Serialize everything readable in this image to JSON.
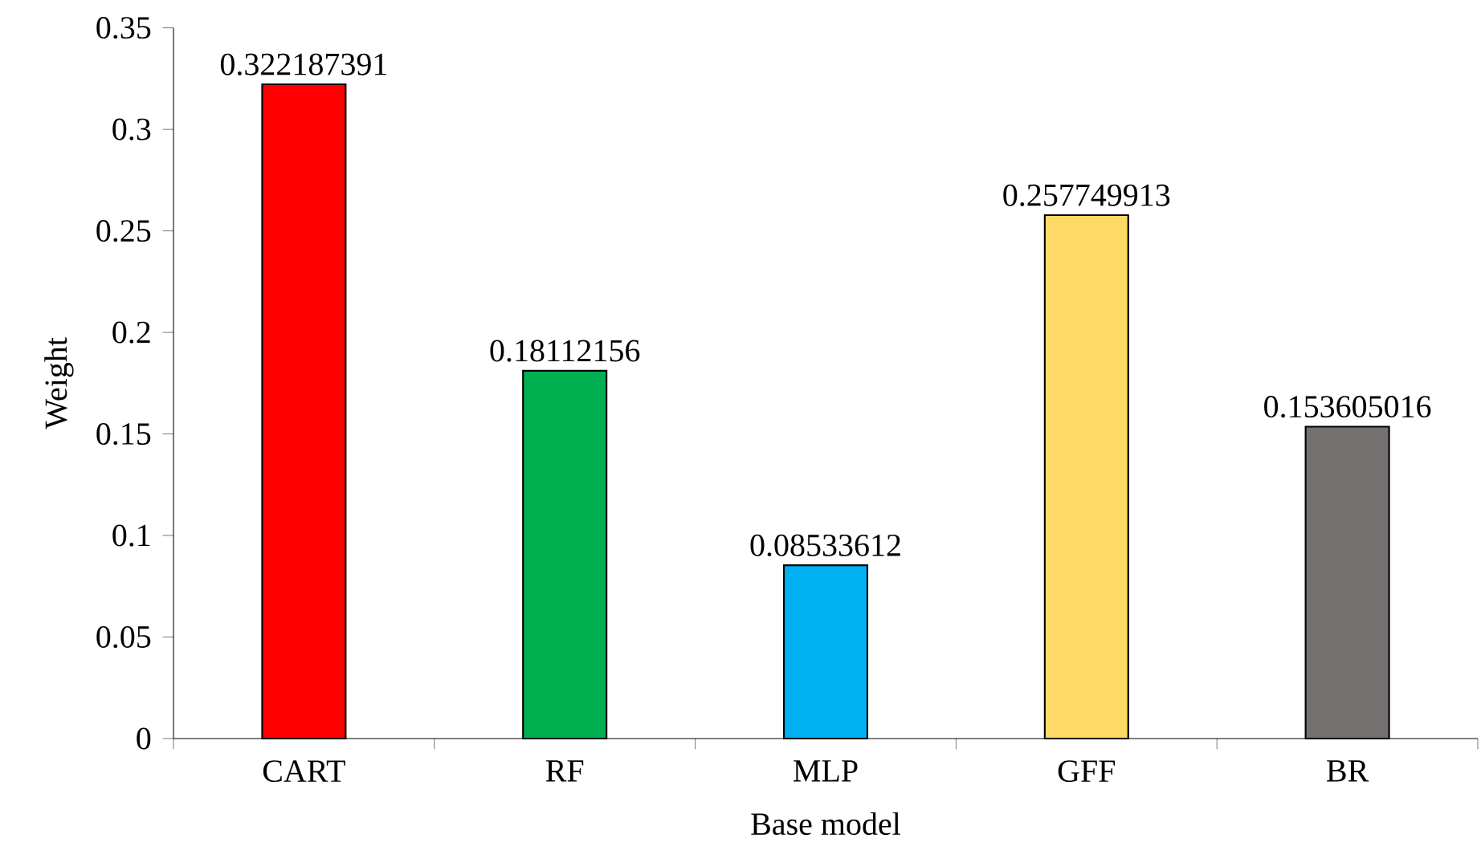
{
  "chart_data": {
    "type": "bar",
    "xlabel": "Base model",
    "ylabel": "Weight",
    "categories": [
      "CART",
      "RF",
      "MLP",
      "GFF",
      "BR"
    ],
    "values": [
      0.322187391,
      0.18112156,
      0.08533612,
      0.257749913,
      0.153605016
    ],
    "colors": [
      "#ff0000",
      "#00b050",
      "#00b0f0",
      "#ffd966",
      "#767171"
    ],
    "ylim": [
      0,
      0.35
    ],
    "yticks": [
      0,
      0.05,
      0.1,
      0.15,
      0.2,
      0.25,
      0.3,
      0.35
    ],
    "data_labels": true
  }
}
